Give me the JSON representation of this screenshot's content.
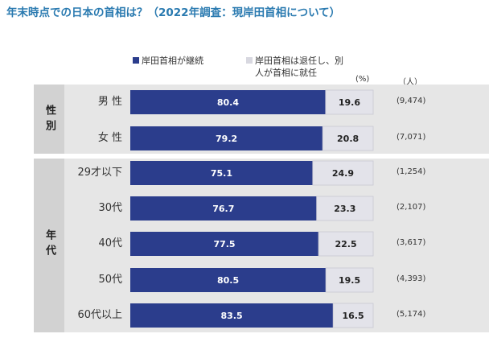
{
  "title": "年末時点での日本の首相は？（2022年調査：現岸田首相について）",
  "legend": {
    "series_1": "岸田首相が継続",
    "series_2": "岸田首相は退任し、別人が首相に就任"
  },
  "units": {
    "percent": "(%)",
    "count": "（人）"
  },
  "groups": [
    {
      "label": "性別"
    },
    {
      "label": "年代"
    }
  ],
  "colors": {
    "continue": "#2b3d8c",
    "resign": "#e3e3ea",
    "title": "#2a7ab0",
    "panel": "#e6e6e6"
  },
  "chart_data": {
    "type": "bar",
    "orientation": "horizontal",
    "stacked": true,
    "title": "年末時点での日本の首相は？（2022年調査：現岸田首相について）",
    "unit": "(%)",
    "categories": [
      "男 性",
      "女 性",
      "29才以下",
      "30代",
      "40代",
      "50代",
      "60代以上"
    ],
    "series": [
      {
        "name": "岸田首相が継続",
        "values": [
          80.4,
          79.2,
          75.1,
          76.7,
          77.5,
          80.5,
          83.5
        ]
      },
      {
        "name": "岸田首相は退任し、別人が首相に就任",
        "values": [
          19.6,
          20.8,
          24.9,
          23.3,
          22.5,
          19.5,
          16.5
        ]
      }
    ],
    "n": [
      "(9,474)",
      "(7,071)",
      "(1,254)",
      "(2,107)",
      "(3,617)",
      "(4,393)",
      "(5,174)"
    ],
    "xlim": [
      0,
      100
    ]
  }
}
